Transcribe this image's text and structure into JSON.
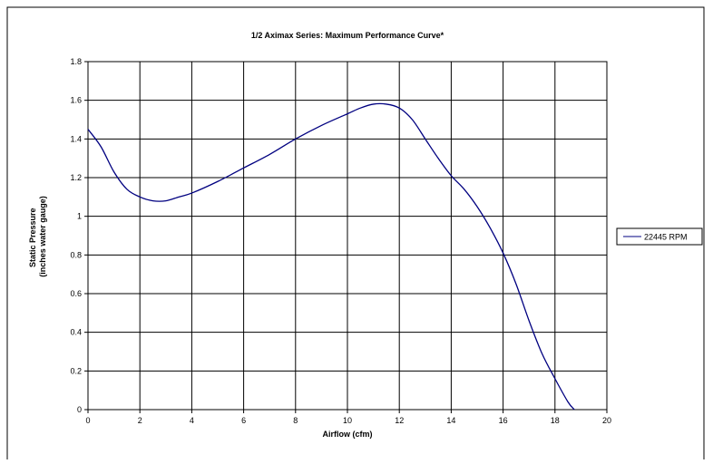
{
  "chart_data": {
    "type": "line",
    "title": "1/2 Aximax Series: Maximum Performance Curve*",
    "xlabel": "Airflow (cfm)",
    "ylabel_lines": [
      "Static Pressure",
      "(inches water gauge)"
    ],
    "xlim": [
      0,
      20
    ],
    "ylim": [
      0,
      1.8
    ],
    "xticks": [
      0,
      2,
      4,
      6,
      8,
      10,
      12,
      14,
      16,
      18,
      20
    ],
    "yticks": [
      0,
      0.2,
      0.4,
      0.6,
      0.8,
      1,
      1.2,
      1.4,
      1.6,
      1.8
    ],
    "xtick_labels": [
      "0",
      "2",
      "4",
      "6",
      "8",
      "10",
      "12",
      "14",
      "16",
      "18",
      "20"
    ],
    "ytick_labels": [
      "0",
      "0.2",
      "0.4",
      "0.6",
      "0.8",
      "1",
      "1.2",
      "1.4",
      "1.6",
      "1.8"
    ],
    "grid": true,
    "legend_position": "right",
    "series": [
      {
        "name": "22445 RPM",
        "color": "#000080",
        "x": [
          0,
          0.5,
          1.0,
          1.5,
          2.0,
          2.5,
          3.0,
          3.5,
          4.0,
          5.0,
          6.0,
          7.0,
          8.0,
          9.0,
          10.0,
          10.5,
          11.0,
          11.5,
          12.0,
          12.5,
          13.0,
          13.5,
          14.0,
          14.5,
          15.0,
          15.5,
          16.0,
          16.5,
          17.0,
          17.5,
          18.0,
          18.5,
          18.75
        ],
        "y": [
          1.45,
          1.36,
          1.23,
          1.14,
          1.1,
          1.08,
          1.08,
          1.1,
          1.12,
          1.18,
          1.25,
          1.32,
          1.4,
          1.47,
          1.53,
          1.56,
          1.58,
          1.58,
          1.56,
          1.5,
          1.4,
          1.3,
          1.21,
          1.14,
          1.05,
          0.94,
          0.81,
          0.65,
          0.46,
          0.29,
          0.16,
          0.04,
          0.0
        ]
      }
    ]
  }
}
